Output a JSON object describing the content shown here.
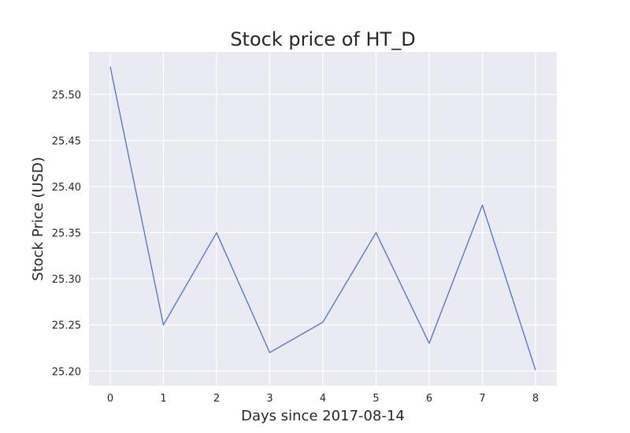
{
  "chart_data": {
    "type": "line",
    "title": "Stock price of HT_D",
    "xlabel": "Days since 2017-08-14",
    "ylabel": "Stock Price (USD)",
    "x": [
      0,
      1,
      2,
      3,
      4,
      5,
      6,
      7,
      8
    ],
    "series": [
      {
        "values": [
          25.53,
          25.25,
          25.35,
          25.22,
          25.253,
          25.35,
          25.23,
          25.38,
          25.201
        ]
      }
    ],
    "xlim": [
      -0.4,
      8.4
    ],
    "ylim": [
      25.184,
      25.546
    ],
    "xticks": [
      0,
      1,
      2,
      3,
      4,
      5,
      6,
      7,
      8
    ],
    "yticks": [
      25.2,
      25.25,
      25.3,
      25.35,
      25.4,
      25.45,
      25.5
    ],
    "ytick_labels": [
      "25.20",
      "25.25",
      "25.30",
      "25.35",
      "25.40",
      "25.45",
      "25.50"
    ],
    "grid": true,
    "legend": "none",
    "colors": {
      "background": "#eaeaf2",
      "grid": "#ffffff",
      "line": "#4c72d0",
      "text": "#262626"
    }
  }
}
